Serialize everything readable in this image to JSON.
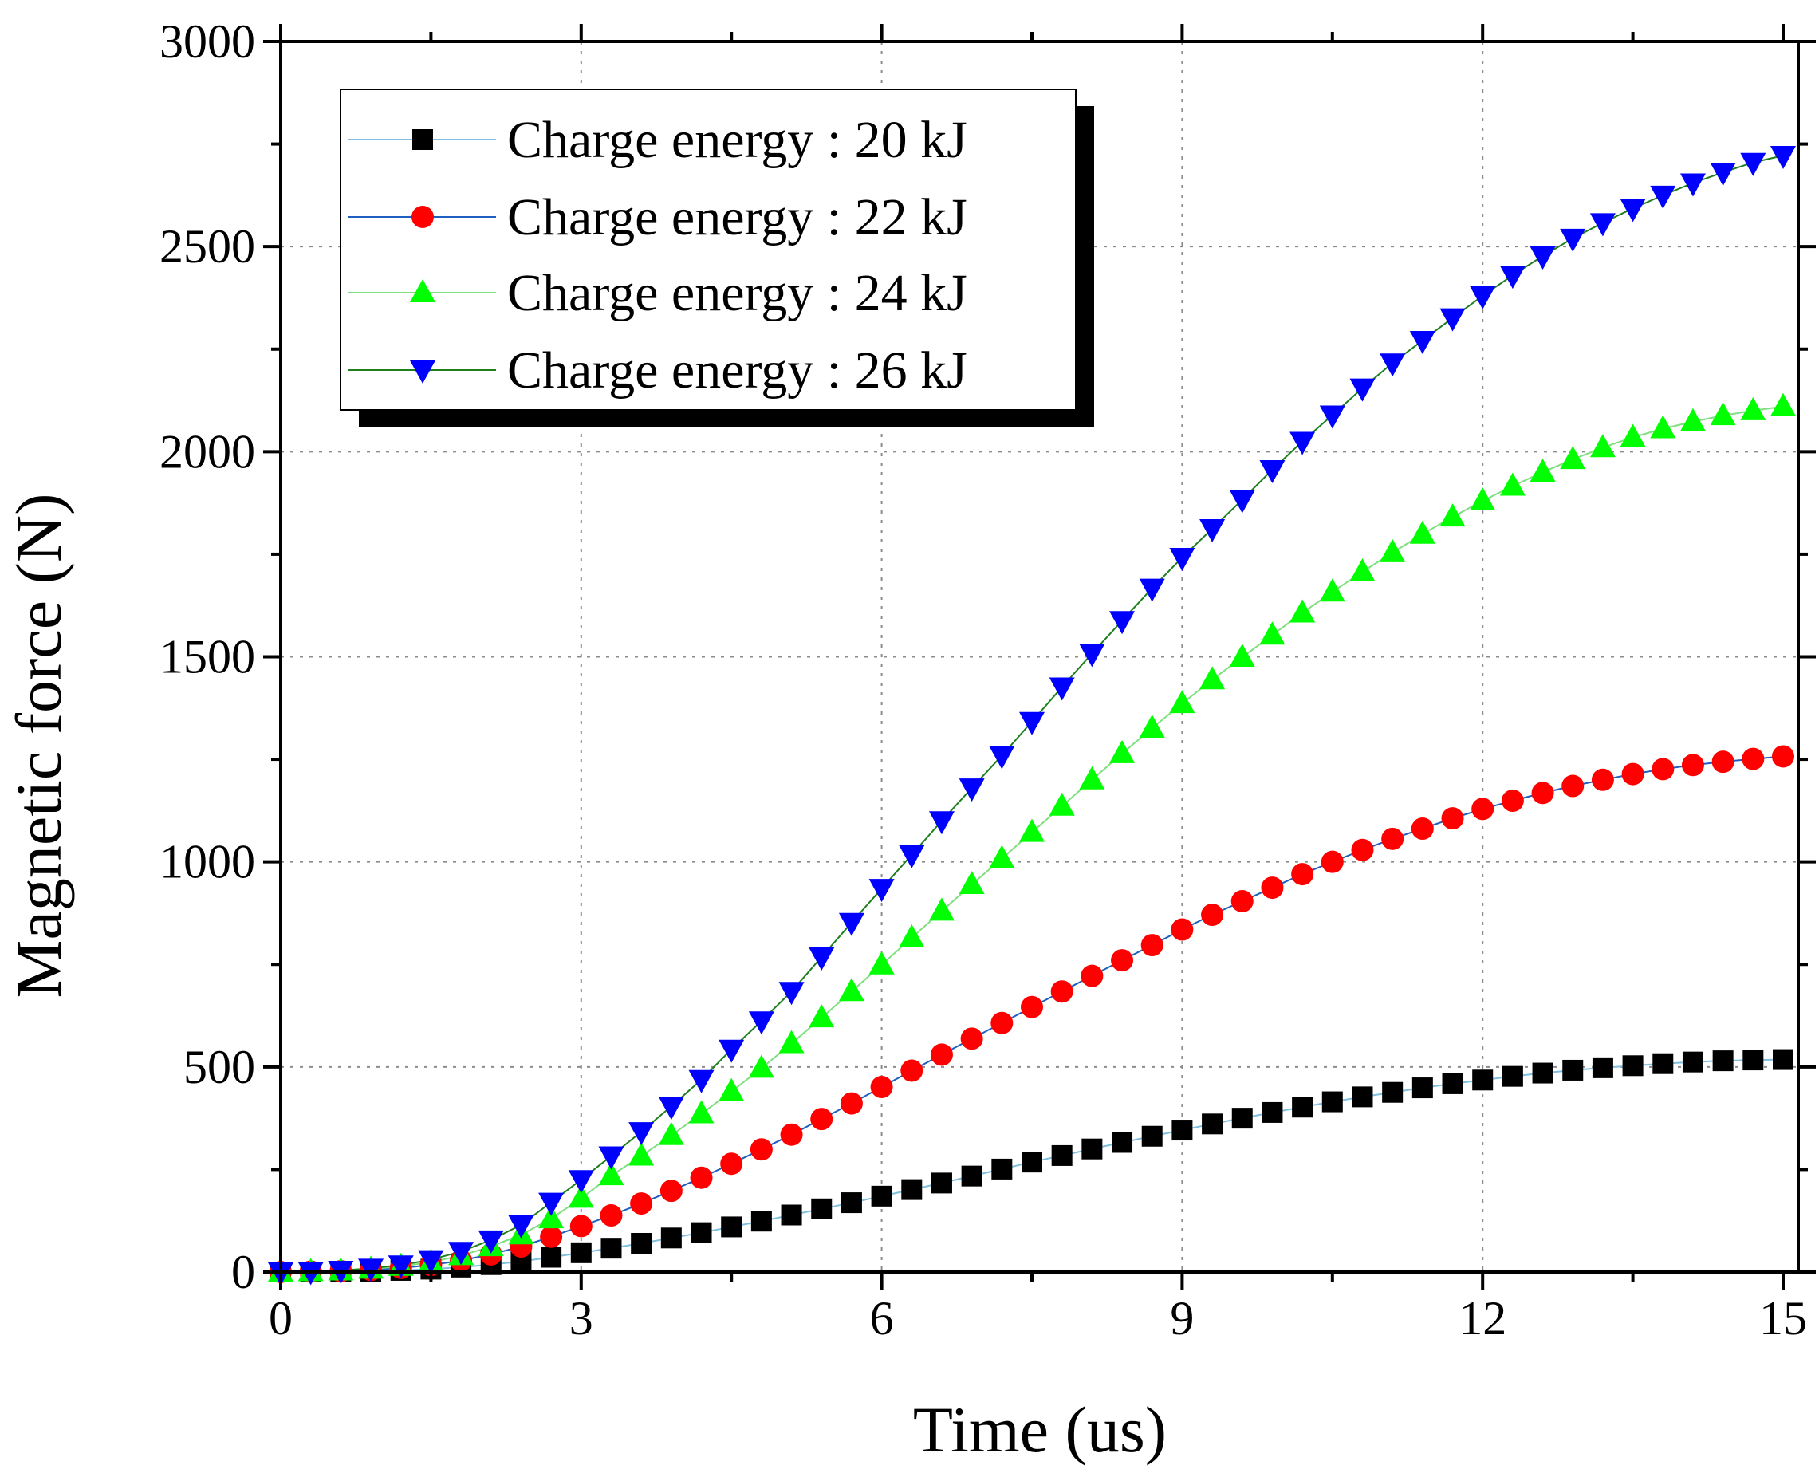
{
  "chart_data": {
    "type": "line",
    "title": "",
    "xlabel": "Time (us)",
    "ylabel": "Magnetic force (N)",
    "xlim": [
      0,
      15
    ],
    "ylim": [
      0,
      3000
    ],
    "xticks": [
      "0",
      "3",
      "6",
      "9",
      "12",
      "15"
    ],
    "yticks": [
      "0",
      "500",
      "1000",
      "1500",
      "2000",
      "2500",
      "3000"
    ],
    "grid": true,
    "legend_position": "top-left",
    "x": [
      0,
      0.3,
      0.6,
      0.9,
      1.2,
      1.5,
      1.8,
      2.1,
      2.4,
      2.7,
      3.0,
      3.3,
      3.6,
      3.9,
      4.2,
      4.5,
      4.8,
      5.1,
      5.4,
      5.7,
      6.0,
      6.3,
      6.6,
      6.9,
      7.2,
      7.5,
      7.8,
      8.1,
      8.4,
      8.7,
      9.0,
      9.3,
      9.6,
      9.9,
      10.2,
      10.5,
      10.8,
      11.1,
      11.4,
      11.7,
      12.0,
      12.3,
      12.6,
      12.9,
      13.2,
      13.5,
      13.8,
      14.1,
      14.4,
      14.7,
      15.0
    ],
    "series": [
      {
        "name": "Charge energy : 20 kJ",
        "marker": "square",
        "color": "#000000",
        "line_color": "#7fbfdf",
        "values": [
          0,
          0,
          1,
          2,
          4,
          7,
          12,
          18,
          26,
          36,
          47,
          58,
          70,
          83,
          96,
          110,
          124,
          139,
          154,
          169,
          185,
          201,
          217,
          234,
          251,
          268,
          284,
          300,
          316,
          331,
          346,
          361,
          375,
          389,
          402,
          415,
          427,
          438,
          449,
          459,
          468,
          477,
          485,
          492,
          498,
          503,
          508,
          512,
          515,
          517,
          518
        ]
      },
      {
        "name": "Charge energy : 22 kJ",
        "marker": "circle",
        "color": "#ff0000",
        "line_color": "#1f5fbf",
        "values": [
          0,
          1,
          2,
          5,
          10,
          17,
          28,
          43,
          62,
          86,
          112,
          138,
          167,
          198,
          230,
          264,
          299,
          335,
          373,
          411,
          451,
          491,
          530,
          569,
          607,
          646,
          684,
          722,
          760,
          797,
          835,
          871,
          904,
          937,
          970,
          1000,
          1029,
          1056,
          1081,
          1106,
          1129,
          1149,
          1168,
          1185,
          1200,
          1214,
          1226,
          1236,
          1244,
          1251,
          1257
        ]
      },
      {
        "name": "Charge energy : 24 kJ",
        "marker": "triangle-up",
        "color": "#00ff00",
        "line_color": "#7fdf7f",
        "values": [
          0,
          1,
          3,
          7,
          14,
          24,
          40,
          62,
          91,
          130,
          180,
          235,
          283,
          333,
          386,
          440,
          497,
          557,
          620,
          684,
          749,
          815,
          880,
          945,
          1008,
          1072,
          1136,
          1200,
          1264,
          1326,
          1386,
          1444,
          1499,
          1553,
          1607,
          1658,
          1707,
          1754,
          1799,
          1841,
          1880,
          1916,
          1950,
          1981,
          2010,
          2035,
          2056,
          2073,
          2088,
          2100,
          2110
        ]
      },
      {
        "name": "Charge energy : 26 kJ",
        "marker": "triangle-down",
        "color": "#0000ff",
        "line_color": "#1f7f1f",
        "values": [
          0,
          1,
          4,
          9,
          17,
          30,
          50,
          78,
          115,
          170,
          225,
          283,
          342,
          404,
          469,
          543,
          612,
          684,
          768,
          852,
          935,
          1017,
          1100,
          1180,
          1259,
          1342,
          1426,
          1508,
          1588,
          1667,
          1742,
          1812,
          1883,
          1956,
          2025,
          2089,
          2155,
          2216,
          2271,
          2326,
          2380,
          2430,
          2477,
          2520,
          2558,
          2593,
          2625,
          2655,
          2681,
          2705,
          2722
        ]
      }
    ]
  }
}
